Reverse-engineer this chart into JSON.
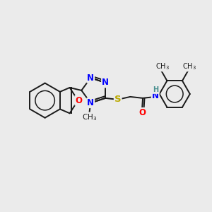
{
  "background_color": "#ebebeb",
  "bond_color": "#1a1a1a",
  "atom_colors": {
    "N": "#0000ff",
    "O": "#ff0000",
    "S": "#bbaa00",
    "H": "#4a9090",
    "C": "#1a1a1a"
  },
  "fs": 8.5,
  "lw": 1.4,
  "fig_w": 3.0,
  "fig_h": 3.0,
  "dpi": 100
}
